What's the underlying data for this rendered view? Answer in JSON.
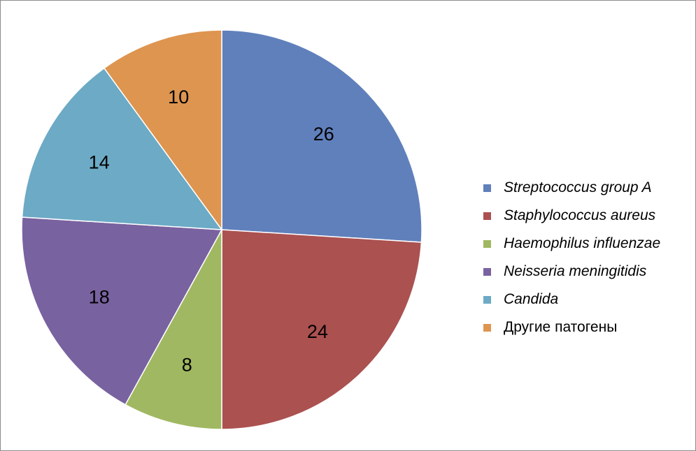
{
  "chart_data": {
    "type": "pie",
    "title": "",
    "start_angle": "12 o'clock, clockwise",
    "slices": [
      {
        "label": "Streptococcus group A",
        "value": 26,
        "value_label": "26",
        "color": "#6080BC",
        "italic": true
      },
      {
        "label": "Staphylococcus aureus",
        "value": 24,
        "value_label": "24",
        "color": "#AB5150",
        "italic": true
      },
      {
        "label": "Haemophilus influenzae",
        "value": 8,
        "value_label": "8",
        "color": "#A0B861",
        "italic": true
      },
      {
        "label": "Neisseria meningitidis",
        "value": 18,
        "value_label": "18",
        "color": "#7962A0",
        "italic": true
      },
      {
        "label": "Candida",
        "value": 14,
        "value_label": "14",
        "color": "#6CAAC5",
        "italic": true
      },
      {
        "label": "Другие патогены",
        "value": 10,
        "value_label": "10",
        "color": "#DE9550",
        "italic": false
      }
    ],
    "legend_position": "right"
  }
}
